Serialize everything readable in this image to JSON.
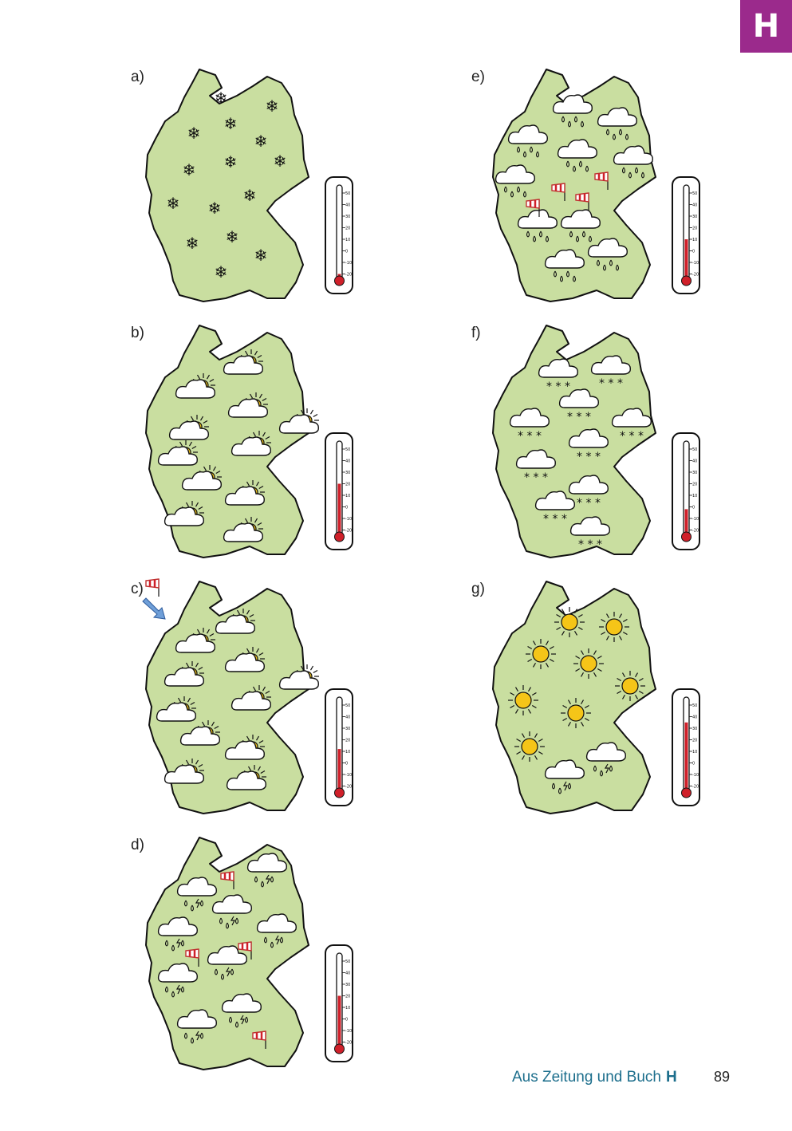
{
  "section_tab": "H",
  "panels": [
    {
      "label": "a)",
      "symbols": "snowflake-icon",
      "thermometer_level_celsius": -20
    },
    {
      "label": "b)",
      "symbols": "sun-behind-cloud-icon",
      "thermometer_level_celsius": 20
    },
    {
      "label": "c)",
      "symbols": "sun-behind-cloud-icon",
      "wind_arrow": true,
      "thermometer_level_celsius": 12
    },
    {
      "label": "d)",
      "symbols": "thunderstorm-cloud-icon",
      "thermometer_level_celsius": 20
    },
    {
      "label": "e)",
      "symbols": "rain-cloud-icon",
      "thermometer_level_celsius": 10
    },
    {
      "label": "f)",
      "symbols": "snow-cloud-icon",
      "thermometer_level_celsius": -2
    },
    {
      "label": "g)",
      "symbols": "sun-icon",
      "thermometer_level_celsius": 35
    }
  ],
  "thermometer_scale": [
    "50",
    "40",
    "30",
    "20",
    "10",
    "0",
    "-10",
    "-20"
  ],
  "colors": {
    "land": "#c9dea0",
    "tab": "#9b2a8c",
    "sun": "#f5c518",
    "mercury": "#d0202a",
    "footer": "#1c6e8c"
  },
  "footer": {
    "title": "Aus Zeitung und Buch",
    "section_letter": "H",
    "page_number": "89"
  }
}
